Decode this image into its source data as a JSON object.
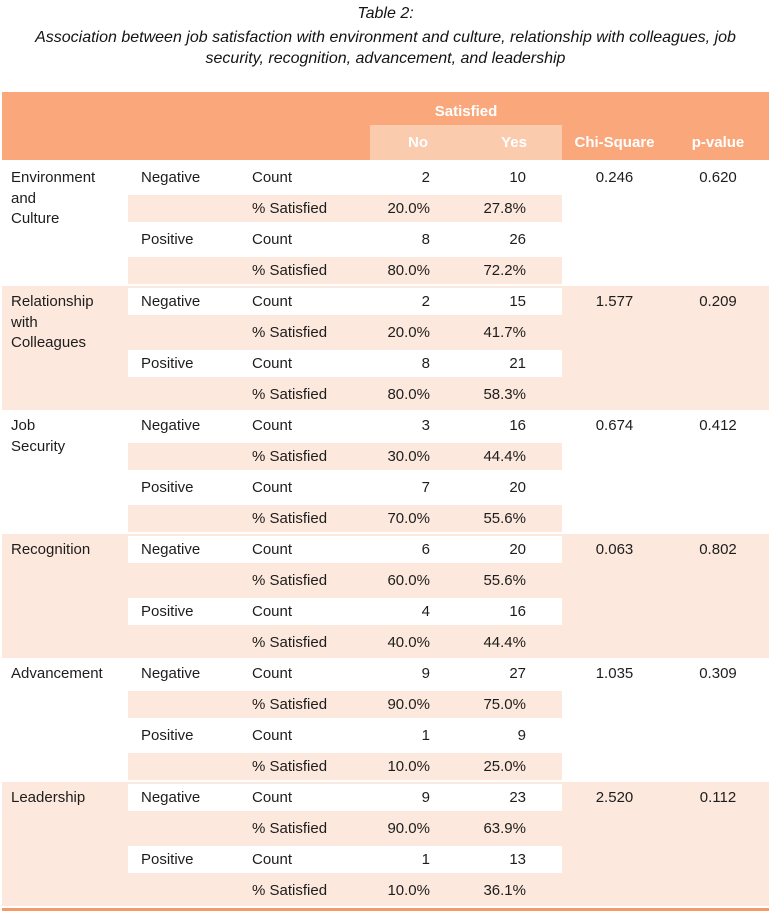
{
  "caption": {
    "title": "Table 2:",
    "subtitle": "Association between job satisfaction with environment and culture, relationship with colleagues, job security, recognition, advancement, and leadership"
  },
  "colors": {
    "header_orange": "#F9A77B",
    "subheader_light": "#FBCBAD",
    "band_peach": "#FCE8DC",
    "bottom_border": "#F49A69",
    "text_dark": "#1D1D1D",
    "header_text": "#FFFFFF"
  },
  "header": {
    "satisfied_label": "Satisfied",
    "no_label": "No",
    "yes_label": "Yes",
    "chi_square_label": "Chi-Square",
    "p_value_label": "p-value"
  },
  "groups": [
    {
      "factor": "Environment\nand\nCulture",
      "chi_square": "0.246",
      "p_value": "0.620",
      "rows": [
        {
          "level": "Negative",
          "metric": "Count",
          "no": "2",
          "yes": "10"
        },
        {
          "level": "",
          "metric": "% Satisfied",
          "no": "20.0%",
          "yes": "27.8%"
        },
        {
          "level": "Positive",
          "metric": "Count",
          "no": "8",
          "yes": "26"
        },
        {
          "level": "",
          "metric": "% Satisfied",
          "no": "80.0%",
          "yes": "72.2%"
        }
      ]
    },
    {
      "factor": "Relationship\nwith\nColleagues",
      "chi_square": "1.577",
      "p_value": "0.209",
      "rows": [
        {
          "level": "Negative",
          "metric": "Count",
          "no": "2",
          "yes": "15"
        },
        {
          "level": "",
          "metric": "% Satisfied",
          "no": "20.0%",
          "yes": "41.7%"
        },
        {
          "level": "Positive",
          "metric": "Count",
          "no": "8",
          "yes": "21"
        },
        {
          "level": "",
          "metric": "% Satisfied",
          "no": "80.0%",
          "yes": "58.3%"
        }
      ]
    },
    {
      "factor": "Job\nSecurity",
      "chi_square": "0.674",
      "p_value": "0.412",
      "rows": [
        {
          "level": "Negative",
          "metric": "Count",
          "no": "3",
          "yes": "16"
        },
        {
          "level": "",
          "metric": "% Satisfied",
          "no": "30.0%",
          "yes": "44.4%"
        },
        {
          "level": "Positive",
          "metric": "Count",
          "no": "7",
          "yes": "20"
        },
        {
          "level": "",
          "metric": "% Satisfied",
          "no": "70.0%",
          "yes": "55.6%"
        }
      ]
    },
    {
      "factor": "Recognition",
      "chi_square": "0.063",
      "p_value": "0.802",
      "rows": [
        {
          "level": "Negative",
          "metric": "Count",
          "no": "6",
          "yes": "20"
        },
        {
          "level": "",
          "metric": "% Satisfied",
          "no": "60.0%",
          "yes": "55.6%"
        },
        {
          "level": "Positive",
          "metric": "Count",
          "no": "4",
          "yes": "16"
        },
        {
          "level": "",
          "metric": "% Satisfied",
          "no": "40.0%",
          "yes": "44.4%"
        }
      ]
    },
    {
      "factor": "Advancement",
      "chi_square": "1.035",
      "p_value": "0.309",
      "rows": [
        {
          "level": "Negative",
          "metric": "Count",
          "no": "9",
          "yes": "27"
        },
        {
          "level": "",
          "metric": "% Satisfied",
          "no": "90.0%",
          "yes": "75.0%"
        },
        {
          "level": "Positive",
          "metric": "Count",
          "no": "1",
          "yes": "9"
        },
        {
          "level": "",
          "metric": "% Satisfied",
          "no": "10.0%",
          "yes": "25.0%"
        }
      ]
    },
    {
      "factor": "Leadership",
      "chi_square": "2.520",
      "p_value": "0.112",
      "rows": [
        {
          "level": "Negative",
          "metric": "Count",
          "no": "9",
          "yes": "23"
        },
        {
          "level": "",
          "metric": "% Satisfied",
          "no": "90.0%",
          "yes": "63.9%"
        },
        {
          "level": "Positive",
          "metric": "Count",
          "no": "1",
          "yes": "13"
        },
        {
          "level": "",
          "metric": "% Satisfied",
          "no": "10.0%",
          "yes": "36.1%"
        }
      ]
    }
  ]
}
